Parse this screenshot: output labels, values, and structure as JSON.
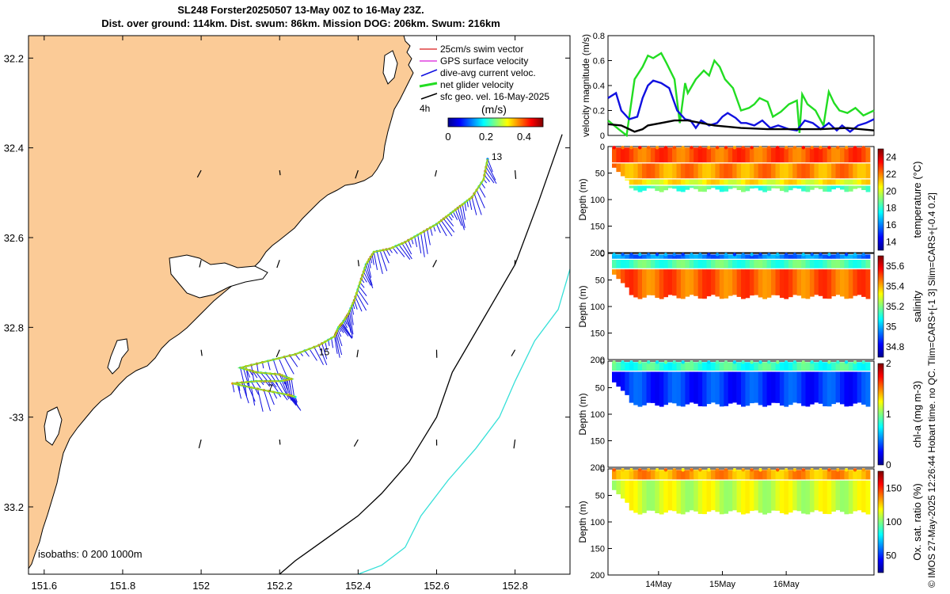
{
  "title": {
    "line1": "SL248 Forster20250507 13-May 00Z to 16-May 23Z.",
    "line2": "Dist. over ground: 114km. Dist. swum: 86km. Mission DOG: 206km. Swum: 216km"
  },
  "credit": "© IMOS 27-May-2025 12:26:44 Hobart time. no QC. Tlim=CARS+[-1 3] Slim=CARS+[-0.4 0.2]",
  "colors": {
    "land": "#fbcb97",
    "sea": "#ffffff",
    "glider_vec": "#1010e0",
    "net": "#22dd22",
    "isobath_200": "#000000",
    "isobath_1000": "#36e0d8",
    "swim": "#e04040",
    "gps": "#e040e0"
  },
  "chart_data": [
    {
      "id": "map",
      "type": "scatter",
      "xlabel": "",
      "ylabel": "",
      "xlim": [
        151.56,
        152.94
      ],
      "ylim": [
        -33.35,
        -32.15
      ],
      "xticks": [
        151.6,
        151.8,
        152,
        152.2,
        152.4,
        152.6,
        152.8
      ],
      "xtick_labels": [
        "151.6",
        "151.8",
        "152",
        "152.2",
        "152.4",
        "152.6",
        "152.8"
      ],
      "yticks": [
        -32.2,
        -32.4,
        -32.6,
        -32.8,
        -33,
        -33.2
      ],
      "ytick_labels": [
        "32.2",
        "32.4",
        "32.6",
        "32.8",
        "-33",
        "33.2"
      ],
      "legend": {
        "position": "top-right",
        "entries": [
          "25cm/s swim vector",
          "GPS surface velocity",
          "dive-avg current veloc.",
          "net glider velocity",
          "sfc geo. vel. 16-May-2025"
        ],
        "interval_label": "4h"
      },
      "colorbar": {
        "label": "(m/s)",
        "ticks": [
          "0",
          "0.2",
          "0.4"
        ],
        "range": [
          0,
          0.5
        ]
      },
      "isobaths_label": "isobaths: 0   200  1000m",
      "track": {
        "lon": [
          152.73,
          152.72,
          152.69,
          152.66,
          152.63,
          152.6,
          152.56,
          152.52,
          152.48,
          152.44,
          152.42,
          152.405,
          152.39,
          152.375,
          152.36,
          152.35,
          152.34,
          152.3,
          152.24,
          152.17,
          152.1,
          152.14,
          152.2,
          152.23,
          152.2,
          152.14,
          152.08,
          152.16,
          152.22,
          152.24
        ],
        "lat": [
          -32.425,
          -32.47,
          -32.51,
          -32.53,
          -32.55,
          -32.57,
          -32.59,
          -32.61,
          -32.625,
          -32.632,
          -32.66,
          -32.7,
          -32.74,
          -32.77,
          -32.79,
          -32.8,
          -32.82,
          -32.84,
          -32.86,
          -32.875,
          -32.89,
          -32.9,
          -32.905,
          -32.915,
          -32.92,
          -32.92,
          -32.925,
          -32.94,
          -32.95,
          -32.955
        ]
      },
      "labels": [
        {
          "text": "13",
          "lon": 152.74,
          "lat": -32.42
        },
        {
          "text": "15",
          "lon": 152.3,
          "lat": -32.855
        },
        {
          "text": "7",
          "lon": 152.17,
          "lat": -32.935
        }
      ],
      "isobath_200": {
        "lon": [
          152.92,
          152.86,
          152.8,
          152.72,
          152.64,
          152.6,
          152.53,
          152.46,
          152.4,
          152.32,
          152.24,
          152.2
        ],
        "lat": [
          -32.37,
          -32.52,
          -32.66,
          -32.78,
          -32.9,
          -33.0,
          -33.1,
          -33.17,
          -33.22,
          -33.27,
          -33.32,
          -33.35
        ]
      },
      "isobath_1000": {
        "lon": [
          152.94,
          152.91,
          152.85,
          152.8,
          152.76,
          152.7,
          152.63,
          152.56,
          152.52,
          152.46,
          152.4
        ],
        "lat": [
          -32.67,
          -32.76,
          -32.83,
          -32.92,
          -33.0,
          -33.07,
          -33.14,
          -33.22,
          -33.29,
          -33.33,
          -33.35
        ]
      }
    },
    {
      "id": "velocity",
      "type": "line",
      "xlabel": "",
      "ylabel": "velocity magnitude (m/s)",
      "ylim": [
        0,
        0.8
      ],
      "yticks": [
        0,
        0.2,
        0.4,
        0.6,
        0.8
      ],
      "xlim": [
        0,
        1
      ],
      "series": [
        {
          "name": "net glider velocity",
          "color": "#22dd22",
          "x": [
            0,
            0.04,
            0.07,
            0.1,
            0.13,
            0.15,
            0.17,
            0.2,
            0.22,
            0.25,
            0.27,
            0.29,
            0.3,
            0.33,
            0.36,
            0.38,
            0.4,
            0.42,
            0.44,
            0.47,
            0.5,
            0.53,
            0.55,
            0.57,
            0.6,
            0.62,
            0.65,
            0.68,
            0.71,
            0.72,
            0.73,
            0.75,
            0.78,
            0.81,
            0.83,
            0.85,
            0.87,
            0.9,
            0.93,
            0.96,
            1.0
          ],
          "y": [
            0.12,
            0.05,
            0.0,
            0.45,
            0.55,
            0.64,
            0.62,
            0.66,
            0.58,
            0.45,
            0.1,
            0.42,
            0.34,
            0.45,
            0.52,
            0.48,
            0.6,
            0.55,
            0.45,
            0.38,
            0.2,
            0.22,
            0.25,
            0.3,
            0.27,
            0.15,
            0.19,
            0.25,
            0.28,
            0.02,
            0.33,
            0.25,
            0.2,
            0.08,
            0.35,
            0.26,
            0.2,
            0.18,
            0.22,
            0.16,
            0.2
          ]
        },
        {
          "name": "dive-avg current veloc.",
          "color": "#1010e0",
          "x": [
            0,
            0.03,
            0.05,
            0.08,
            0.11,
            0.13,
            0.15,
            0.17,
            0.2,
            0.23,
            0.26,
            0.29,
            0.31,
            0.33,
            0.35,
            0.38,
            0.41,
            0.43,
            0.45,
            0.48,
            0.5,
            0.52,
            0.55,
            0.58,
            0.61,
            0.64,
            0.68,
            0.71,
            0.74,
            0.77,
            0.8,
            0.83,
            0.86,
            0.88,
            0.91,
            0.94,
            0.97,
            1.0
          ],
          "y": [
            0.3,
            0.34,
            0.2,
            0.13,
            0.15,
            0.3,
            0.4,
            0.44,
            0.42,
            0.38,
            0.2,
            0.13,
            0.12,
            0.06,
            0.12,
            0.08,
            0.1,
            0.15,
            0.18,
            0.14,
            0.1,
            0.1,
            0.08,
            0.12,
            0.06,
            0.08,
            0.05,
            0.04,
            0.12,
            0.1,
            0.05,
            0.1,
            0.04,
            0.08,
            0.03,
            0.08,
            0.1,
            0.13
          ]
        },
        {
          "name": "sfc geo. vel.",
          "color": "#000000",
          "x": [
            0,
            0.05,
            0.08,
            0.1,
            0.13,
            0.15,
            0.2,
            0.25,
            0.3,
            0.35,
            0.4,
            0.5,
            0.6,
            0.7,
            0.8,
            0.9,
            1.0
          ],
          "y": [
            0.09,
            0.08,
            0.05,
            0.03,
            0.05,
            0.08,
            0.1,
            0.12,
            0.12,
            0.1,
            0.08,
            0.06,
            0.05,
            0.05,
            0.05,
            0.06,
            0.04
          ]
        }
      ]
    },
    {
      "id": "temperature",
      "type": "heatmap",
      "ylabel": "Depth (m)",
      "cbar_label": "temperature (°C)",
      "ylim": [
        200,
        0
      ],
      "yticks": [
        0,
        50,
        100,
        150,
        200
      ],
      "clim": [
        13,
        25
      ],
      "cticks": [
        14,
        16,
        18,
        20,
        22,
        24
      ],
      "colormap": "jet",
      "layers": [
        {
          "depth": [
            0,
            30
          ],
          "value": 22.5
        },
        {
          "depth": [
            30,
            60
          ],
          "value": 21.8
        },
        {
          "depth": [
            60,
            72
          ],
          "value": 20.5
        },
        {
          "depth": [
            72,
            82
          ],
          "value": 18.5
        }
      ]
    },
    {
      "id": "salinity",
      "type": "heatmap",
      "ylabel": "Depth (m)",
      "cbar_label": "salinity",
      "ylim": [
        200,
        0
      ],
      "yticks": [
        0,
        50,
        100,
        150,
        200
      ],
      "clim": [
        34.7,
        35.7
      ],
      "cticks": [
        34.8,
        35,
        35.2,
        35.4,
        35.6
      ],
      "colormap": "jet",
      "layers": [
        {
          "depth": [
            0,
            10
          ],
          "value": 34.95
        },
        {
          "depth": [
            10,
            28
          ],
          "value": 35.15
        },
        {
          "depth": [
            28,
            82
          ],
          "value": 35.48
        }
      ]
    },
    {
      "id": "chla",
      "type": "heatmap",
      "ylabel": "Depth (m)",
      "cbar_label": "chl-a (mg m-3)",
      "ylim": [
        200,
        0
      ],
      "yticks": [
        0,
        50,
        100,
        150,
        200
      ],
      "clim": [
        0,
        2
      ],
      "cticks": [
        0,
        1,
        2
      ],
      "colormap": "jet",
      "layers": [
        {
          "depth": [
            0,
            18
          ],
          "value": 0.85
        },
        {
          "depth": [
            18,
            82
          ],
          "value": 0.35
        }
      ]
    },
    {
      "id": "oxygen",
      "type": "heatmap",
      "ylabel": "Depth (m)",
      "cbar_label": "Ox. sat. ratio (%)",
      "ylim": [
        200,
        0
      ],
      "yticks": [
        0,
        50,
        100,
        150,
        200
      ],
      "clim": [
        25,
        175
      ],
      "cticks": [
        50,
        100,
        150
      ],
      "colormap": "jet",
      "xticks": [
        "14May",
        "15May",
        "16May"
      ],
      "xtick_pos": [
        0.19,
        0.43,
        0.67
      ],
      "layers": [
        {
          "depth": [
            0,
            20
          ],
          "value": 132
        },
        {
          "depth": [
            20,
            82
          ],
          "value": 112
        }
      ]
    }
  ]
}
